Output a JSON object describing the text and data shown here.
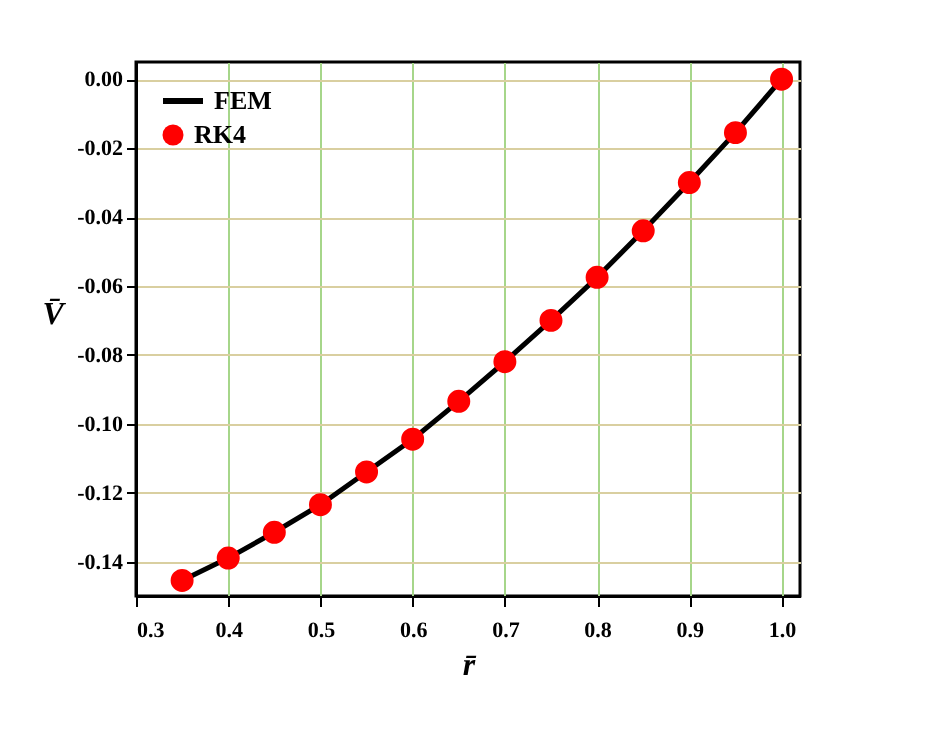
{
  "chart_data": {
    "type": "line",
    "xlabel": "r̄",
    "ylabel": "V̄",
    "xlim": [
      0.3,
      1.02
    ],
    "ylim": [
      -0.15,
      0.005
    ],
    "xticks": [
      {
        "value": 0.3,
        "label": "0.3"
      },
      {
        "value": 0.4,
        "label": "0.4"
      },
      {
        "value": 0.5,
        "label": "0.5"
      },
      {
        "value": 0.6,
        "label": "0.6"
      },
      {
        "value": 0.7,
        "label": "0.7"
      },
      {
        "value": 0.8,
        "label": "0.8"
      },
      {
        "value": 0.9,
        "label": "0.9"
      },
      {
        "value": 1.0,
        "label": "1.0"
      }
    ],
    "yticks": [
      {
        "value": -0.14,
        "label": "-0.14"
      },
      {
        "value": -0.12,
        "label": "-0.12"
      },
      {
        "value": -0.1,
        "label": "-0.10"
      },
      {
        "value": -0.08,
        "label": "-0.08"
      },
      {
        "value": -0.06,
        "label": "-0.06"
      },
      {
        "value": -0.04,
        "label": "-0.04"
      },
      {
        "value": -0.02,
        "label": "-0.02"
      },
      {
        "value": 0.0,
        "label": "0.00"
      }
    ],
    "grid": true,
    "legend": "top left",
    "x": [
      0.35,
      0.4,
      0.45,
      0.5,
      0.55,
      0.6,
      0.65,
      0.7,
      0.75,
      0.8,
      0.85,
      0.9,
      0.95,
      1.0
    ],
    "series": [
      {
        "name": "FEM",
        "color": "#000000",
        "marker": "none",
        "line_style": "solid",
        "values": [
          -0.1455,
          -0.139,
          -0.1315,
          -0.1235,
          -0.114,
          -0.1045,
          -0.0935,
          -0.082,
          -0.07,
          -0.0575,
          -0.044,
          -0.03,
          -0.0155,
          0.0
        ]
      },
      {
        "name": "RK4",
        "type": "scatter",
        "color": "#ff0000",
        "marker": "circle",
        "values": [
          -0.1455,
          -0.139,
          -0.1315,
          -0.1235,
          -0.114,
          -0.1045,
          -0.0935,
          -0.082,
          -0.07,
          -0.0575,
          -0.044,
          -0.03,
          -0.0155,
          0.0
        ]
      }
    ]
  }
}
